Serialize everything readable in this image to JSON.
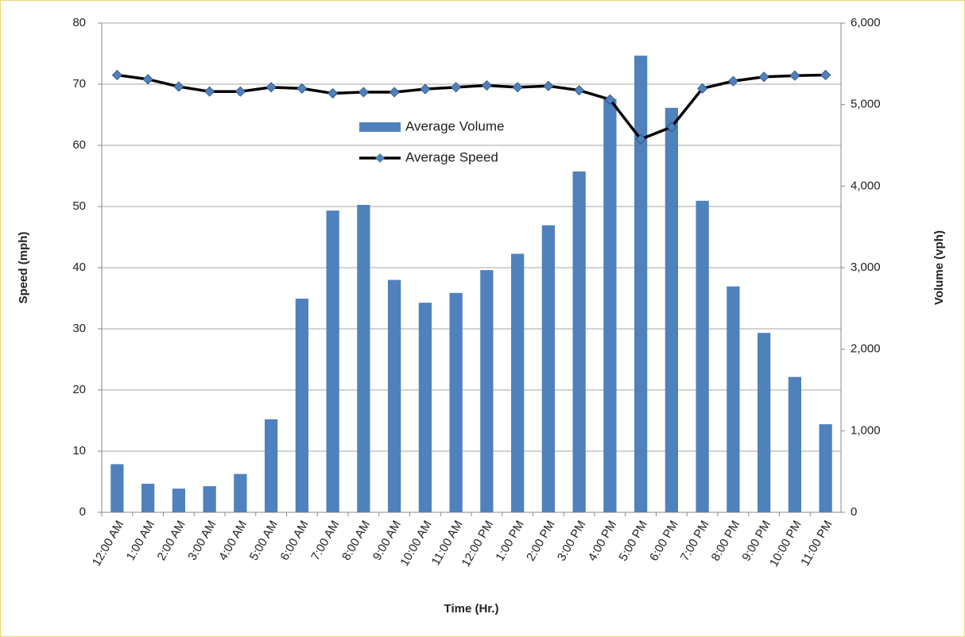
{
  "chart_data": {
    "type": "combo",
    "x_label": "Time (Hr.)",
    "y_label": "Speed (mph)",
    "y2_label": "Volume (vph)",
    "categories": [
      "12:00 AM",
      "1:00 AM",
      "2:00 AM",
      "3:00 AM",
      "4:00 AM",
      "5:00 AM",
      "6:00 AM",
      "7:00 AM",
      "8:00 AM",
      "9:00 AM",
      "10:00 AM",
      "11:00 AM",
      "12:00 PM",
      "1:00 PM",
      "2:00 PM",
      "3:00 PM",
      "4:00 PM",
      "5:00 PM",
      "6:00 PM",
      "7:00 PM",
      "8:00 PM",
      "9:00 PM",
      "10:00 PM",
      "11:00 PM"
    ],
    "series": [
      {
        "name": "Average Volume",
        "type": "bar",
        "axis": "y2",
        "color": "#4f81bd",
        "values": [
          590,
          350,
          290,
          320,
          470,
          1140,
          2620,
          3700,
          3770,
          2850,
          2570,
          2690,
          2970,
          3170,
          3520,
          4180,
          5070,
          5600,
          4960,
          3820,
          2770,
          2200,
          1660,
          1080
        ]
      },
      {
        "name": "Average Speed",
        "type": "line",
        "axis": "y",
        "color": "#000000",
        "marker_color": "#4f81bd",
        "values": [
          71.5,
          70.8,
          69.6,
          68.8,
          68.8,
          69.5,
          69.3,
          68.5,
          68.7,
          68.7,
          69.2,
          69.5,
          69.8,
          69.5,
          69.7,
          69.0,
          67.5,
          61.0,
          63.0,
          69.3,
          70.5,
          71.2,
          71.4,
          71.5
        ]
      }
    ],
    "ylim": [
      0,
      80
    ],
    "yticks": [
      0,
      10,
      20,
      30,
      40,
      50,
      60,
      70,
      80
    ],
    "y2lim": [
      0,
      6000
    ],
    "y2ticks": [
      0,
      {
        "value": 1000,
        "label": "1,000"
      },
      {
        "value": 2000,
        "label": "2,000"
      },
      {
        "value": 3000,
        "label": "3,000"
      },
      {
        "value": 4000,
        "label": "4,000"
      },
      {
        "value": 5000,
        "label": "5,000"
      },
      {
        "value": 6000,
        "label": "6,000"
      }
    ],
    "grid": true
  }
}
